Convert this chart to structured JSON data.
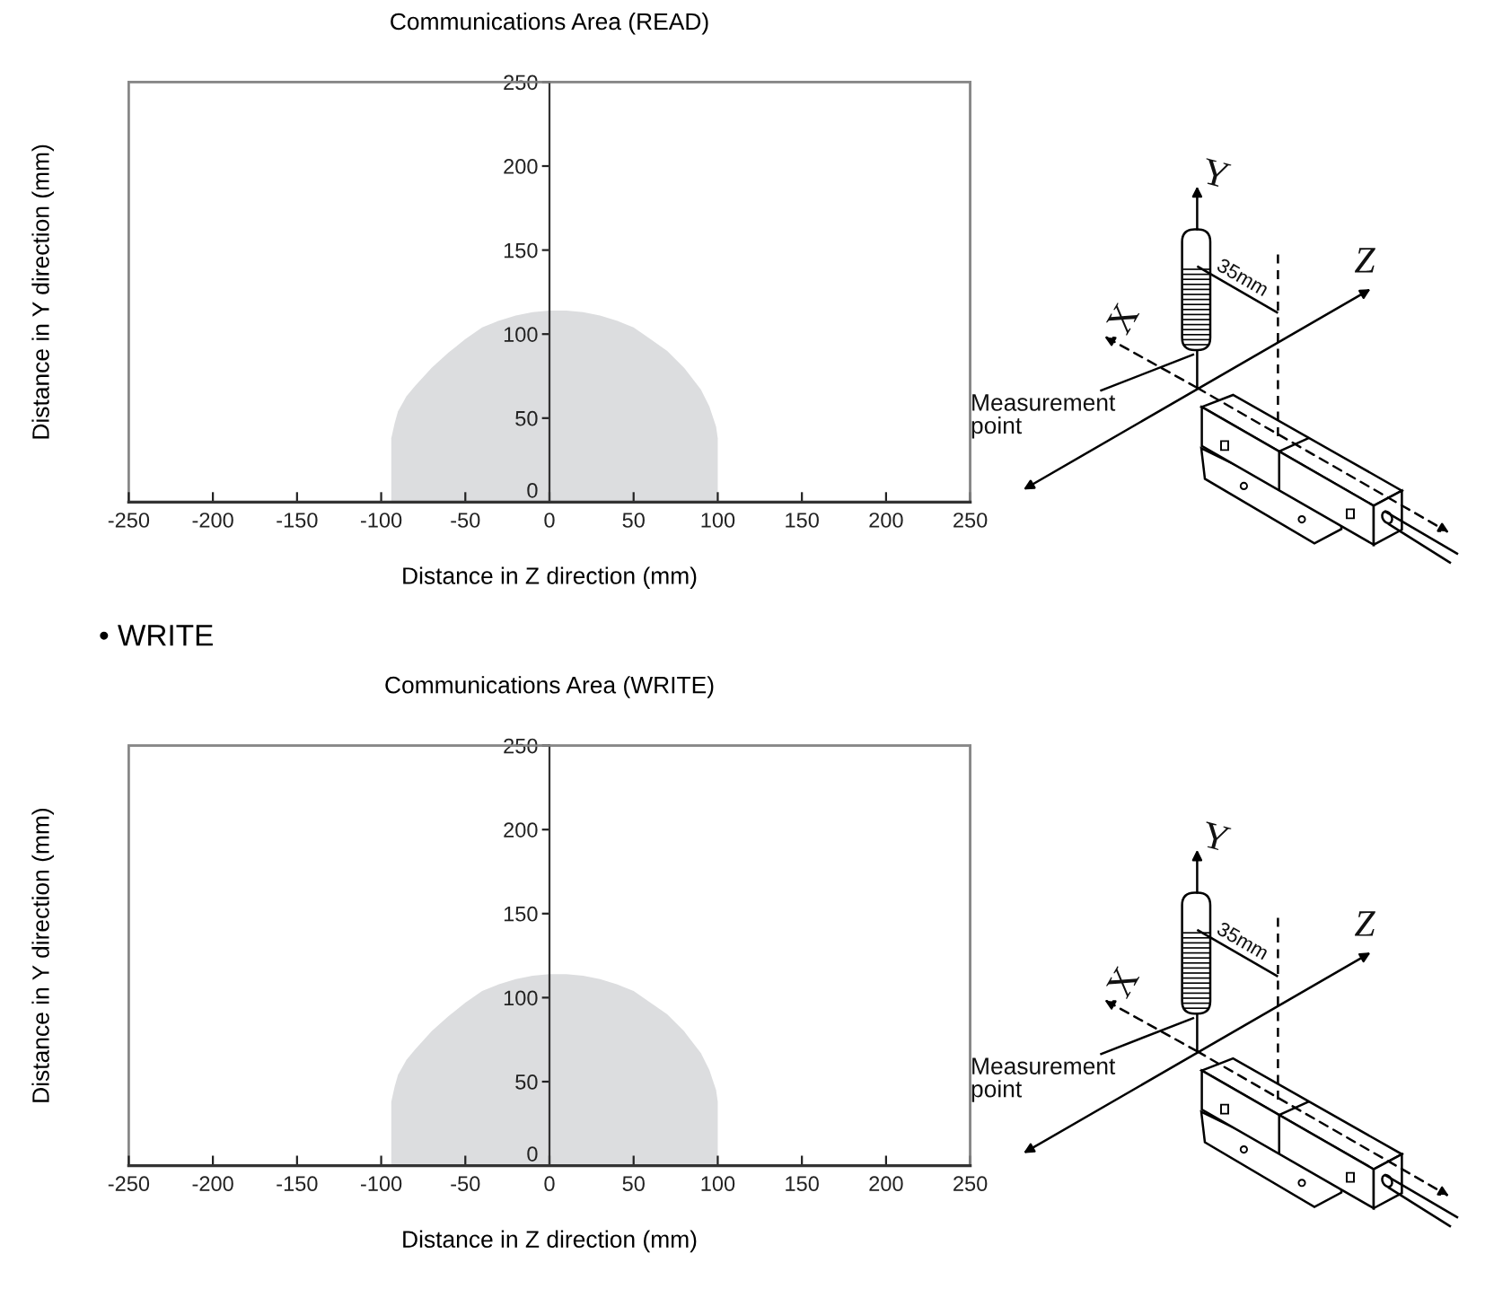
{
  "chart_data": [
    {
      "type": "area",
      "title": "Communications Area (READ)",
      "xlabel": "Distance in Z direction (mm)",
      "ylabel": "Distance in Y direction (mm)",
      "x": [
        -94,
        -92,
        -90,
        -85,
        -80,
        -70,
        -60,
        -50,
        -40,
        -30,
        -20,
        -10,
        0,
        10,
        20,
        30,
        40,
        50,
        60,
        70,
        80,
        90,
        95,
        99,
        100
      ],
      "series": [
        {
          "color": "#dcdddf",
          "values": [
            38,
            47,
            54,
            63,
            69,
            80,
            89,
            97,
            104,
            108,
            111,
            113,
            114,
            114,
            113,
            111,
            108,
            104,
            97,
            90,
            80,
            67,
            57,
            45,
            38
          ]
        }
      ],
      "xlim": [
        -250,
        250
      ],
      "ylim": [
        0,
        250
      ],
      "xticks": [
        -250,
        -200,
        -150,
        -100,
        -50,
        0,
        50,
        100,
        150,
        200,
        250
      ],
      "yticks": [
        0,
        50,
        100,
        150,
        200,
        250
      ],
      "annotations": [
        "Y",
        "X",
        "Z",
        "35mm",
        "Measurement\npoint"
      ]
    },
    {
      "type": "area",
      "title": "Communications Area (WRITE)",
      "xlabel": "Distance in Z direction (mm)",
      "ylabel": "Distance in Y direction (mm)",
      "x": [
        -94,
        -92,
        -90,
        -85,
        -80,
        -70,
        -60,
        -50,
        -40,
        -30,
        -20,
        -10,
        0,
        10,
        20,
        30,
        40,
        50,
        60,
        70,
        80,
        90,
        95,
        99,
        100
      ],
      "series": [
        {
          "color": "#dcdddf",
          "values": [
            38,
            47,
            54,
            63,
            69,
            80,
            89,
            97,
            104,
            108,
            111,
            113,
            114,
            114,
            113,
            111,
            108,
            104,
            97,
            90,
            80,
            67,
            57,
            45,
            38
          ]
        }
      ],
      "xlim": [
        -250,
        250
      ],
      "ylim": [
        0,
        250
      ],
      "xticks": [
        -250,
        -200,
        -150,
        -100,
        -50,
        0,
        50,
        100,
        150,
        200,
        250
      ],
      "yticks": [
        0,
        50,
        100,
        150,
        200,
        250
      ],
      "annotations": [
        "• WRITE",
        "Y",
        "X",
        "Z",
        "35mm",
        "Measurement\npoint"
      ]
    }
  ]
}
